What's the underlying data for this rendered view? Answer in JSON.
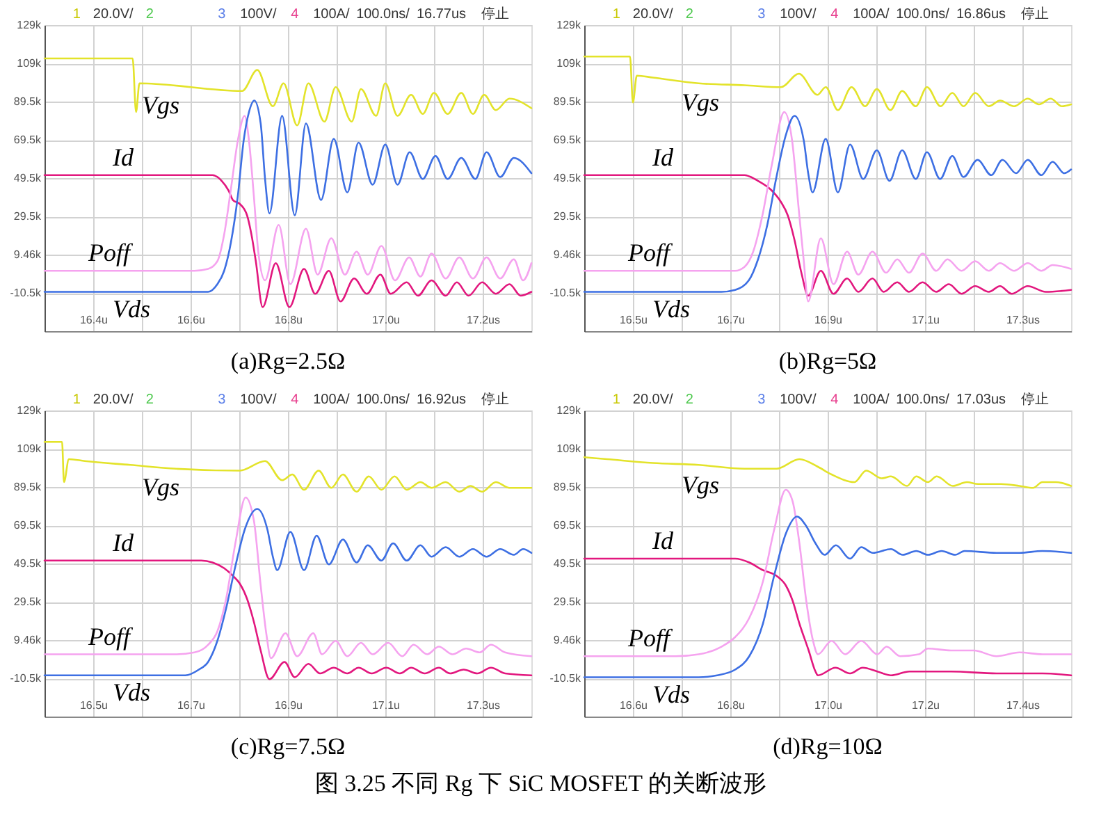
{
  "chart_data": [
    {
      "type": "line",
      "title": "(a)Rg=2.5Ω",
      "annotations": [
        "1",
        "20.0V/",
        "2",
        "3",
        "100V/",
        "4",
        "100A/",
        "100.0ns/",
        "16.77us",
        "停止"
      ],
      "xlim": [
        16.3,
        17.3
      ],
      "xticks": [
        {
          "value": 16.4,
          "label": "16.4u"
        },
        {
          "value": 16.5,
          "label": null
        },
        {
          "value": 16.6,
          "label": "16.6u"
        },
        {
          "value": 16.7,
          "label": null
        },
        {
          "value": 16.8,
          "label": "16.8u"
        },
        {
          "value": 16.9,
          "label": null
        },
        {
          "value": 17.0,
          "label": "17.0u"
        },
        {
          "value": 17.1,
          "label": null
        },
        {
          "value": 17.2,
          "label": "17.2us"
        }
      ],
      "ylim": [
        -30.54,
        129.46
      ],
      "yticks": [
        {
          "value": 129.46,
          "label": "129k"
        },
        {
          "value": 109.46,
          "label": "109k"
        },
        {
          "value": 89.46,
          "label": "89.5k"
        },
        {
          "value": 69.46,
          "label": "69.5k"
        },
        {
          "value": 49.46,
          "label": "49.5k"
        },
        {
          "value": 29.46,
          "label": "29.5k"
        },
        {
          "value": 9.46,
          "label": "9.46k"
        },
        {
          "value": -10.54,
          "label": "-10.5k"
        }
      ],
      "grid": true,
      "series": [
        {
          "name": "Vgs",
          "color": "#e3e32a",
          "x": [
            16.3,
            16.481,
            16.488,
            16.495,
            16.706,
            16.737,
            16.769,
            16.791,
            16.819,
            16.842,
            16.875,
            16.898,
            16.931,
            16.95,
            16.981,
            17.0,
            17.025,
            17.053,
            17.077,
            17.1,
            17.128,
            17.156,
            17.18,
            17.203,
            17.227,
            17.255,
            17.3
          ],
          "values": [
            112,
            112,
            84,
            99,
            95,
            106,
            87,
            99,
            77,
            99,
            79,
            97,
            79,
            96,
            82,
            99,
            82,
            93,
            83,
            94,
            83,
            94,
            83,
            93,
            85,
            91,
            86
          ]
        },
        {
          "name": "Id",
          "color": "#e2177e",
          "x": [
            16.3,
            16.645,
            16.664,
            16.678,
            16.687,
            16.701,
            16.716,
            16.725,
            16.734,
            16.748,
            16.775,
            16.803,
            16.833,
            16.856,
            16.884,
            16.908,
            16.936,
            16.962,
            16.99,
            17.011,
            17.044,
            17.067,
            17.095,
            17.124,
            17.147,
            17.171,
            17.199,
            17.227,
            17.255,
            17.278,
            17.3
          ],
          "values": [
            51,
            51,
            48,
            43,
            38,
            36,
            30,
            20,
            6,
            -18,
            5,
            -18,
            2,
            -11,
            1,
            -15,
            -3,
            -11,
            -1,
            -11,
            -5,
            -12,
            -4,
            -12,
            -5,
            -12,
            -5,
            -11,
            -6,
            -12,
            -10
          ]
        },
        {
          "name": "Poff",
          "color": "#f5a3ef",
          "x": [
            16.3,
            16.608,
            16.636,
            16.655,
            16.669,
            16.683,
            16.697,
            16.711,
            16.72,
            16.73,
            16.739,
            16.753,
            16.781,
            16.805,
            16.837,
            16.861,
            16.889,
            16.917,
            16.941,
            16.964,
            16.992,
            17.02,
            17.049,
            17.072,
            17.095,
            17.124,
            17.152,
            17.18,
            17.208,
            17.236,
            17.264,
            17.283,
            17.3
          ],
          "values": [
            1,
            1,
            2,
            6,
            20,
            44,
            69,
            82,
            69,
            40,
            11,
            -4,
            25,
            -6,
            23,
            -1,
            18,
            -1,
            11,
            -1,
            14,
            -4,
            8,
            -2,
            10,
            -3,
            8,
            -3,
            8,
            -3,
            7,
            -4,
            5
          ]
        },
        {
          "name": "Vds",
          "color": "#3d6fe3",
          "x": [
            16.3,
            16.636,
            16.655,
            16.669,
            16.683,
            16.697,
            16.709,
            16.72,
            16.731,
            16.744,
            16.753,
            16.762,
            16.788,
            16.814,
            16.837,
            16.868,
            16.894,
            16.922,
            16.945,
            16.974,
            17.0,
            17.025,
            17.05,
            17.077,
            17.103,
            17.128,
            17.156,
            17.185,
            17.208,
            17.236,
            17.264,
            17.3
          ],
          "values": [
            -10,
            -10,
            -6,
            1,
            16,
            40,
            69,
            84,
            90,
            78,
            49,
            31,
            82,
            30,
            78,
            38,
            70,
            42,
            68,
            46,
            67,
            46,
            63,
            49,
            61,
            49,
            60,
            49,
            63,
            50,
            60,
            52
          ]
        }
      ]
    },
    {
      "type": "line",
      "title": "(b)Rg=5Ω",
      "annotations": [
        "1",
        "20.0V/",
        "2",
        "3",
        "100V/",
        "4",
        "100A/",
        "100.0ns/",
        "16.86us",
        "停止"
      ],
      "xlim": [
        16.4,
        17.4
      ],
      "xticks": [
        {
          "value": 16.5,
          "label": "16.5u"
        },
        {
          "value": 16.6,
          "label": null
        },
        {
          "value": 16.7,
          "label": "16.7u"
        },
        {
          "value": 16.8,
          "label": null
        },
        {
          "value": 16.9,
          "label": "16.9u"
        },
        {
          "value": 17.0,
          "label": null
        },
        {
          "value": 17.1,
          "label": "17.1u"
        },
        {
          "value": 17.2,
          "label": null
        },
        {
          "value": 17.3,
          "label": "17.3us"
        }
      ],
      "ylim": [
        -30.54,
        129.46
      ],
      "yticks": [
        {
          "value": 129.46,
          "label": "129k"
        },
        {
          "value": 109.46,
          "label": "109k"
        },
        {
          "value": 89.46,
          "label": "89.5k"
        },
        {
          "value": 69.46,
          "label": "69.5k"
        },
        {
          "value": 49.46,
          "label": "49.5k"
        },
        {
          "value": 29.46,
          "label": "29.5k"
        },
        {
          "value": 9.46,
          "label": "9.46k"
        },
        {
          "value": -10.54,
          "label": "-10.5k"
        }
      ],
      "grid": true,
      "series": [
        {
          "name": "Vgs",
          "color": "#e3e32a",
          "x": [
            16.4,
            16.494,
            16.5,
            16.508,
            16.541,
            16.635,
            16.729,
            16.804,
            16.841,
            16.879,
            16.896,
            16.921,
            16.949,
            16.977,
            17.001,
            17.029,
            17.053,
            17.081,
            17.104,
            17.132,
            17.156,
            17.179,
            17.203,
            17.231,
            17.254,
            17.283,
            17.311,
            17.334,
            17.358,
            17.381,
            17.4
          ],
          "values": [
            113,
            113,
            89,
            103,
            102,
            99,
            98,
            97,
            104,
            93,
            97,
            85,
            97,
            87,
            96,
            85,
            95,
            87,
            97,
            87,
            94,
            87,
            94,
            87,
            90,
            87,
            91,
            88,
            91,
            87,
            88
          ]
        },
        {
          "name": "Id",
          "color": "#e2177e",
          "x": [
            16.4,
            16.729,
            16.757,
            16.785,
            16.804,
            16.818,
            16.832,
            16.846,
            16.86,
            16.886,
            16.912,
            16.94,
            16.963,
            16.992,
            17.015,
            17.043,
            17.067,
            17.095,
            17.123,
            17.149,
            17.175,
            17.203,
            17.231,
            17.254,
            17.278,
            17.311,
            17.348,
            17.4
          ],
          "values": [
            51,
            51,
            48,
            43,
            37,
            30,
            17,
            0,
            -12,
            1,
            -11,
            -3,
            -10,
            -3,
            -10,
            -5,
            -10,
            -5,
            -10,
            -6,
            -11,
            -7,
            -10,
            -7,
            -11,
            -7,
            -10,
            -9
          ]
        },
        {
          "name": "Poff",
          "color": "#f5a3ef",
          "x": [
            16.4,
            16.71,
            16.729,
            16.747,
            16.766,
            16.785,
            16.811,
            16.827,
            16.841,
            16.851,
            16.86,
            16.886,
            16.912,
            16.94,
            16.963,
            16.992,
            17.02,
            17.043,
            17.067,
            17.095,
            17.123,
            17.146,
            17.175,
            17.203,
            17.231,
            17.254,
            17.283,
            17.311,
            17.339,
            17.362,
            17.4
          ],
          "values": [
            1,
            1,
            3,
            11,
            30,
            56,
            84,
            69,
            32,
            6,
            -15,
            18,
            -6,
            11,
            -1,
            11,
            0,
            7,
            0,
            10,
            1,
            7,
            1,
            6,
            1,
            5,
            1,
            5,
            1,
            4,
            2
          ]
        },
        {
          "name": "Vds",
          "color": "#3d6fe3",
          "x": [
            16.4,
            16.682,
            16.71,
            16.738,
            16.757,
            16.776,
            16.794,
            16.813,
            16.832,
            16.851,
            16.86,
            16.869,
            16.896,
            16.921,
            16.946,
            16.973,
            17.001,
            17.027,
            17.053,
            17.081,
            17.104,
            17.131,
            17.156,
            17.179,
            17.208,
            17.236,
            17.259,
            17.287,
            17.311,
            17.339,
            17.362,
            17.386,
            17.4
          ],
          "values": [
            -10,
            -10,
            -9,
            -4,
            7,
            25,
            49,
            71,
            82,
            69,
            52,
            42,
            70,
            42,
            67,
            49,
            64,
            48,
            64,
            49,
            63,
            49,
            61,
            50,
            59,
            51,
            59,
            52,
            59,
            51,
            58,
            52,
            54
          ]
        }
      ]
    },
    {
      "type": "line",
      "title": "(c)Rg=7.5Ω",
      "annotations": [
        "1",
        "20.0V/",
        "2",
        "3",
        "100V/",
        "4",
        "100A/",
        "100.0ns/",
        "16.92us",
        "停止"
      ],
      "xlim": [
        16.4,
        17.4
      ],
      "xticks": [
        {
          "value": 16.5,
          "label": "16.5u"
        },
        {
          "value": 16.6,
          "label": null
        },
        {
          "value": 16.7,
          "label": "16.7u"
        },
        {
          "value": 16.8,
          "label": null
        },
        {
          "value": 16.9,
          "label": "16.9u"
        },
        {
          "value": 17.0,
          "label": null
        },
        {
          "value": 17.1,
          "label": "17.1u"
        },
        {
          "value": 17.2,
          "label": null
        },
        {
          "value": 17.3,
          "label": "17.3us"
        }
      ],
      "ylim": [
        -30.54,
        129.46
      ],
      "yticks": [
        {
          "value": 129.46,
          "label": "129k"
        },
        {
          "value": 109.46,
          "label": "109k"
        },
        {
          "value": 89.46,
          "label": "89.5k"
        },
        {
          "value": 69.46,
          "label": "69.5k"
        },
        {
          "value": 49.46,
          "label": "49.5k"
        },
        {
          "value": 29.46,
          "label": "29.5k"
        },
        {
          "value": 9.46,
          "label": "9.46k"
        },
        {
          "value": -10.54,
          "label": "-10.5k"
        }
      ],
      "grid": true,
      "series": [
        {
          "name": "Vgs",
          "color": "#e3e32a",
          "x": [
            16.4,
            16.436,
            16.44,
            16.45,
            16.483,
            16.576,
            16.67,
            16.801,
            16.853,
            16.888,
            16.909,
            16.933,
            16.963,
            16.989,
            17.013,
            17.041,
            17.066,
            17.092,
            17.119,
            17.144,
            17.172,
            17.195,
            17.224,
            17.252,
            17.275,
            17.299,
            17.327,
            17.355,
            17.4
          ],
          "values": [
            113,
            113,
            92,
            104,
            103,
            101,
            99,
            98,
            103,
            93,
            96,
            88,
            98,
            89,
            96,
            87,
            95,
            88,
            95,
            88,
            92,
            89,
            92,
            87,
            90,
            87,
            92,
            89,
            89
          ]
        },
        {
          "name": "Id",
          "color": "#e2177e",
          "x": [
            16.4,
            16.722,
            16.745,
            16.769,
            16.787,
            16.801,
            16.816,
            16.83,
            16.844,
            16.862,
            16.893,
            16.914,
            16.942,
            16.966,
            16.994,
            17.022,
            17.045,
            17.072,
            17.102,
            17.13,
            17.153,
            17.181,
            17.21,
            17.233,
            17.261,
            17.289,
            17.317,
            17.346,
            17.4
          ],
          "values": [
            51,
            51,
            50,
            47,
            43,
            39,
            31,
            19,
            4,
            -11,
            -2,
            -10,
            -3,
            -8,
            -5,
            -8,
            -5,
            -8,
            -5,
            -8,
            -5,
            -8,
            -5,
            -8,
            -6,
            -8,
            -5,
            -8,
            -9
          ]
        },
        {
          "name": "Poff",
          "color": "#f5a3ef",
          "x": [
            16.4,
            16.67,
            16.708,
            16.736,
            16.755,
            16.773,
            16.792,
            16.813,
            16.83,
            16.844,
            16.856,
            16.865,
            16.895,
            16.919,
            16.952,
            16.97,
            16.998,
            17.022,
            17.05,
            17.074,
            17.106,
            17.135,
            17.158,
            17.186,
            17.21,
            17.238,
            17.266,
            17.294,
            17.317,
            17.346,
            17.4
          ],
          "values": [
            2,
            2,
            3,
            7,
            14,
            31,
            60,
            84,
            72,
            38,
            12,
            0,
            13,
            1,
            13,
            2,
            9,
            1,
            8,
            2,
            8,
            1,
            7,
            2,
            6,
            2,
            5,
            3,
            7,
            3,
            1
          ]
        },
        {
          "name": "Vds",
          "color": "#3d6fe3",
          "x": [
            16.4,
            16.689,
            16.717,
            16.736,
            16.755,
            16.773,
            16.792,
            16.811,
            16.837,
            16.858,
            16.869,
            16.878,
            16.905,
            16.933,
            16.959,
            16.984,
            17.013,
            17.041,
            17.064,
            17.092,
            17.116,
            17.144,
            17.172,
            17.195,
            17.224,
            17.252,
            17.28,
            17.308,
            17.336,
            17.364,
            17.383,
            17.4
          ],
          "values": [
            -9,
            -9,
            -6,
            -2,
            9,
            26,
            48,
            67,
            78,
            67,
            53,
            46,
            66,
            46,
            64,
            49,
            62,
            50,
            59,
            51,
            60,
            51,
            59,
            53,
            58,
            53,
            57,
            53,
            57,
            54,
            57,
            55
          ]
        }
      ]
    },
    {
      "type": "line",
      "title": "(d)Rg=10Ω",
      "annotations": [
        "1",
        "20.0V/",
        "2",
        "3",
        "100V/",
        "4",
        "100A/",
        "100.0ns/",
        "17.03us",
        "停止",
        "图 3.25 不同 Rg 下 SiC MOSFET 的关断波形"
      ],
      "xlim": [
        16.5,
        17.5
      ],
      "xticks": [
        {
          "value": 16.6,
          "label": "16.6u"
        },
        {
          "value": 16.7,
          "label": null
        },
        {
          "value": 16.8,
          "label": "16.8u"
        },
        {
          "value": 16.9,
          "label": null
        },
        {
          "value": 17.0,
          "label": "17.0u"
        },
        {
          "value": 17.1,
          "label": null
        },
        {
          "value": 17.2,
          "label": "17.2u"
        },
        {
          "value": 17.3,
          "label": null
        },
        {
          "value": 17.4,
          "label": "17.4us"
        }
      ],
      "ylim": [
        -30.54,
        129.46
      ],
      "yticks": [
        {
          "value": 129.46,
          "label": "129k"
        },
        {
          "value": 109.46,
          "label": "109k"
        },
        {
          "value": 89.46,
          "label": "89.5k"
        },
        {
          "value": 69.46,
          "label": "69.5k"
        },
        {
          "value": 49.46,
          "label": "49.5k"
        },
        {
          "value": 29.46,
          "label": "29.5k"
        },
        {
          "value": 9.46,
          "label": "9.46k"
        },
        {
          "value": -10.54,
          "label": "-10.5k"
        }
      ],
      "grid": true,
      "series": [
        {
          "name": "Vgs",
          "color": "#e3e32a",
          "x": [
            16.5,
            16.547,
            16.641,
            16.735,
            16.829,
            16.895,
            16.942,
            16.98,
            17.008,
            17.055,
            17.079,
            17.111,
            17.13,
            17.163,
            17.182,
            17.206,
            17.224,
            17.257,
            17.286,
            17.309,
            17.356,
            17.394,
            17.422,
            17.441,
            17.469,
            17.5
          ],
          "values": [
            105,
            104,
            102,
            101,
            99,
            99,
            104,
            100,
            96,
            92,
            98,
            94,
            95,
            90,
            95,
            92,
            95,
            90,
            92,
            91,
            91,
            90,
            89,
            92,
            92,
            90
          ]
        },
        {
          "name": "Id",
          "color": "#e2177e",
          "x": [
            16.5,
            16.81,
            16.839,
            16.867,
            16.895,
            16.914,
            16.928,
            16.942,
            16.961,
            16.975,
            16.98,
            17.016,
            17.046,
            17.072,
            17.102,
            17.13,
            17.168,
            17.196,
            17.253,
            17.347,
            17.441,
            17.5
          ],
          "values": [
            52,
            52,
            50,
            46,
            43,
            38,
            30,
            18,
            4,
            -7,
            -9,
            -5,
            -8,
            -5,
            -7,
            -9,
            -7,
            -7,
            -7,
            -8,
            -8,
            -9
          ]
        },
        {
          "name": "Poff",
          "color": "#f5a3ef",
          "x": [
            16.5,
            16.688,
            16.735,
            16.782,
            16.81,
            16.839,
            16.867,
            16.89,
            16.914,
            16.928,
            16.942,
            16.956,
            16.97,
            16.98,
            17.008,
            17.036,
            17.069,
            17.102,
            17.121,
            17.149,
            17.187,
            17.206,
            17.253,
            17.3,
            17.347,
            17.394,
            17.441,
            17.5
          ],
          "values": [
            1,
            1,
            2,
            6,
            11,
            21,
            40,
            67,
            88,
            82,
            60,
            30,
            9,
            2,
            9,
            2,
            9,
            2,
            6,
            1,
            2,
            5,
            4,
            4,
            1,
            3,
            2,
            2
          ]
        },
        {
          "name": "Vds",
          "color": "#3d6fe3",
          "x": [
            16.5,
            16.735,
            16.773,
            16.81,
            16.839,
            16.867,
            16.89,
            16.914,
            16.937,
            16.956,
            16.975,
            16.994,
            17.017,
            17.046,
            17.069,
            17.093,
            17.13,
            17.154,
            17.182,
            17.206,
            17.234,
            17.262,
            17.281,
            17.347,
            17.394,
            17.441,
            17.5
          ],
          "values": [
            -10,
            -10,
            -9,
            -6,
            1,
            18,
            43,
            65,
            74,
            69,
            60,
            54,
            59,
            52,
            58,
            55,
            57,
            54,
            56,
            54,
            56,
            54,
            56,
            55,
            55,
            56,
            55
          ]
        }
      ]
    }
  ]
}
